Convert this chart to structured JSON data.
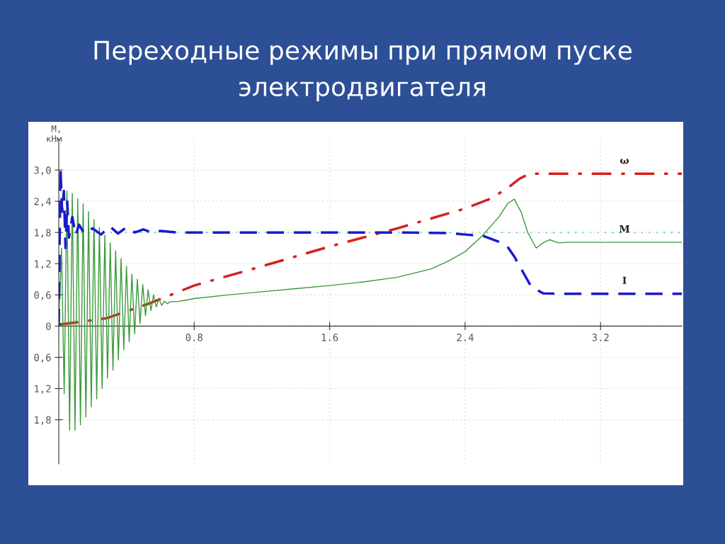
{
  "chart_data": {
    "type": "line",
    "title": "Переходные режимы при прямом пуске\nэлектродвигателя",
    "ylabel": "М,\nкНм",
    "xlim": [
      0,
      3.68
    ],
    "ylim": [
      -2.65,
      3.6
    ],
    "xticks": [
      0.8,
      1.6,
      2.4,
      3.2
    ],
    "yticks": [
      {
        "value": 3.0,
        "label": "3,0"
      },
      {
        "value": 2.4,
        "label": "2,4"
      },
      {
        "value": 1.8,
        "label": "1,8"
      },
      {
        "value": 1.2,
        "label": "1,2"
      },
      {
        "value": 0.6,
        "label": "0,6"
      },
      0,
      {
        "value": -0.6,
        "label": "0,6"
      },
      {
        "value": -1.2,
        "label": "1,2"
      },
      {
        "value": -1.8,
        "label": "1,8"
      }
    ],
    "grid": true,
    "ref_lines": [
      {
        "axis": "y",
        "value": 1.8,
        "color": "#40c8e0",
        "line_style": "dotted"
      }
    ],
    "series": [
      {
        "name": "ω",
        "color": "#d42020",
        "line_style": "dashdot",
        "x": [
          0,
          0.1,
          0.28,
          0.53,
          0.8,
          1.2,
          1.6,
          2.0,
          2.4,
          2.55,
          2.65,
          2.72,
          2.78,
          3.68
        ],
        "values": [
          0.03,
          0.07,
          0.15,
          0.43,
          0.78,
          1.15,
          1.53,
          1.88,
          2.26,
          2.45,
          2.65,
          2.83,
          2.93,
          2.93
        ]
      },
      {
        "name": "М",
        "color": "#3a9a3a",
        "line_style": "solid",
        "x": [
          0,
          0.016,
          0.032,
          0.048,
          0.064,
          0.08,
          0.096,
          0.112,
          0.128,
          0.144,
          0.16,
          0.176,
          0.192,
          0.208,
          0.224,
          0.24,
          0.256,
          0.272,
          0.288,
          0.304,
          0.32,
          0.336,
          0.352,
          0.368,
          0.384,
          0.4,
          0.416,
          0.432,
          0.448,
          0.464,
          0.48,
          0.496,
          0.512,
          0.528,
          0.544,
          0.56,
          0.576,
          0.592,
          0.608,
          0.624,
          0.64,
          0.66,
          0.7,
          0.8,
          1.0,
          1.2,
          1.4,
          1.6,
          1.8,
          2.0,
          2.2,
          2.3,
          2.4,
          2.5,
          2.6,
          2.65,
          2.69,
          2.73,
          2.77,
          2.82,
          2.86,
          2.9,
          2.95,
          3.0,
          3.68
        ],
        "values": [
          0,
          1.5,
          -1.3,
          2.6,
          -2.0,
          2.55,
          -2.0,
          2.45,
          -1.9,
          2.35,
          -1.75,
          2.2,
          -1.55,
          2.05,
          -1.4,
          1.9,
          -1.2,
          1.75,
          -1.0,
          1.6,
          -0.85,
          1.45,
          -0.65,
          1.3,
          -0.45,
          1.15,
          -0.3,
          1.0,
          -0.15,
          0.9,
          0.05,
          0.8,
          0.2,
          0.7,
          0.3,
          0.6,
          0.37,
          0.52,
          0.4,
          0.48,
          0.43,
          0.47,
          0.47,
          0.53,
          0.6,
          0.66,
          0.72,
          0.78,
          0.85,
          0.94,
          1.1,
          1.25,
          1.43,
          1.73,
          2.1,
          2.35,
          2.44,
          2.2,
          1.8,
          1.5,
          1.6,
          1.66,
          1.6,
          1.61,
          1.61
        ]
      },
      {
        "name": "I",
        "color": "#1a1acc",
        "line_style": "dashed",
        "x": [
          0,
          0.01,
          0.02,
          0.03,
          0.04,
          0.05,
          0.06,
          0.08,
          0.1,
          0.12,
          0.15,
          0.2,
          0.25,
          0.3,
          0.35,
          0.4,
          0.45,
          0.5,
          0.55,
          0.6,
          0.7,
          1.2,
          2.0,
          2.3,
          2.4,
          2.51,
          2.6,
          2.65,
          2.69,
          2.74,
          2.79,
          2.86,
          3.0,
          3.68
        ],
        "values": [
          0,
          3.05,
          2.2,
          2.6,
          1.5,
          2.4,
          1.7,
          2.1,
          1.75,
          1.95,
          1.78,
          1.88,
          1.76,
          1.92,
          1.78,
          1.9,
          1.8,
          1.86,
          1.8,
          1.83,
          1.8,
          1.8,
          1.8,
          1.79,
          1.76,
          1.73,
          1.62,
          1.53,
          1.34,
          1.05,
          0.76,
          0.63,
          0.62,
          0.62
        ]
      }
    ]
  }
}
